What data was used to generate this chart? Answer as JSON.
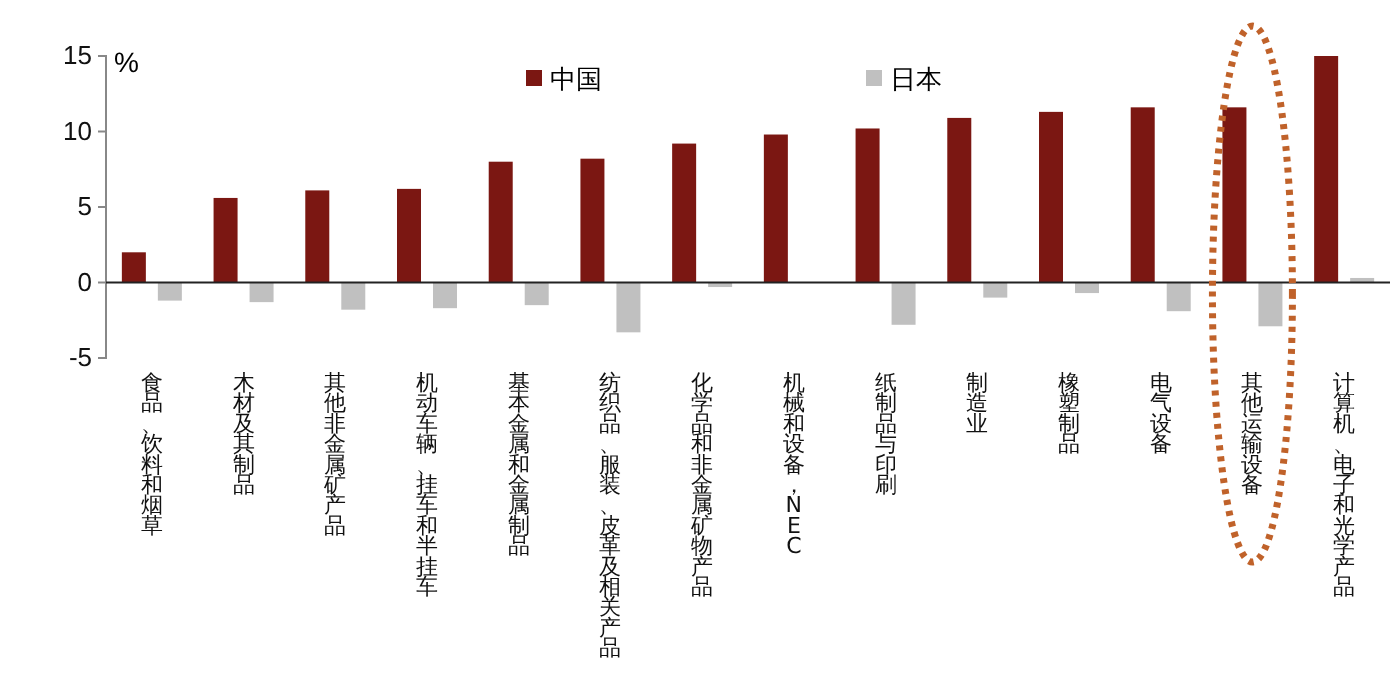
{
  "chart_data": {
    "type": "bar",
    "ylabel": "%",
    "categories": [
      "食品、饮料和烟草",
      "木材及其制品",
      "其他非金属矿产品",
      "机动车辆、挂车和半挂车",
      "基本金属和金属制品",
      "纺织品、服装、皮革及相关产品",
      "化学品和非金属矿物产品",
      "机械和设备，NEC",
      "纸制品与印刷",
      "制造业",
      "橡塑制品",
      "电气设备",
      "其他运输设备",
      "计算机、电子和光学产品"
    ],
    "series": [
      {
        "name": "中国",
        "color": "#7b1712",
        "values": [
          2.0,
          5.6,
          6.1,
          6.2,
          8.0,
          8.2,
          9.2,
          9.8,
          10.2,
          10.9,
          11.3,
          11.6,
          11.6,
          15.0
        ]
      },
      {
        "name": "日本",
        "color": "#c0c0c0",
        "values": [
          -1.2,
          -1.3,
          -1.8,
          -1.7,
          -1.5,
          -3.3,
          -0.3,
          0,
          -2.8,
          -1.0,
          -0.7,
          -1.9,
          -2.9,
          0.3
        ]
      }
    ],
    "ylim": [
      -5,
      15
    ],
    "yticks": [
      -5,
      0,
      5,
      10,
      15
    ],
    "legend": "top"
  }
}
